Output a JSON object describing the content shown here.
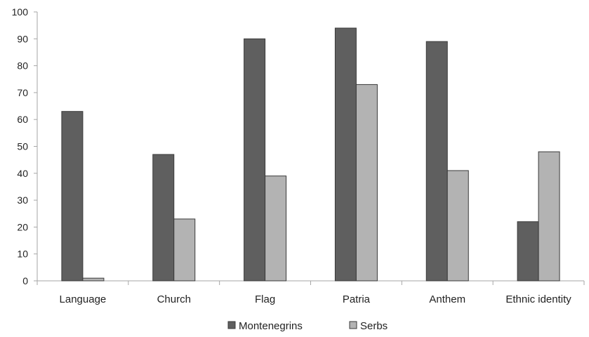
{
  "chart_data": {
    "type": "bar",
    "categories": [
      "Language",
      "Church",
      "Flag",
      "Patria",
      "Anthem",
      "Ethnic identity"
    ],
    "series": [
      {
        "name": "Montenegrins",
        "values": [
          63,
          47,
          90,
          94,
          89,
          22
        ],
        "color": "#5f5f5f"
      },
      {
        "name": "Serbs",
        "values": [
          1,
          23,
          39,
          73,
          41,
          48
        ],
        "color": "#b3b3b3"
      }
    ],
    "ylim": [
      0,
      100
    ],
    "yticks": [
      0,
      10,
      20,
      30,
      40,
      50,
      60,
      70,
      80,
      90,
      100
    ],
    "grid": false,
    "legend_position": "bottom",
    "bar_border_color": "#3a3a3a",
    "axis_color": "#a6a6a6"
  }
}
